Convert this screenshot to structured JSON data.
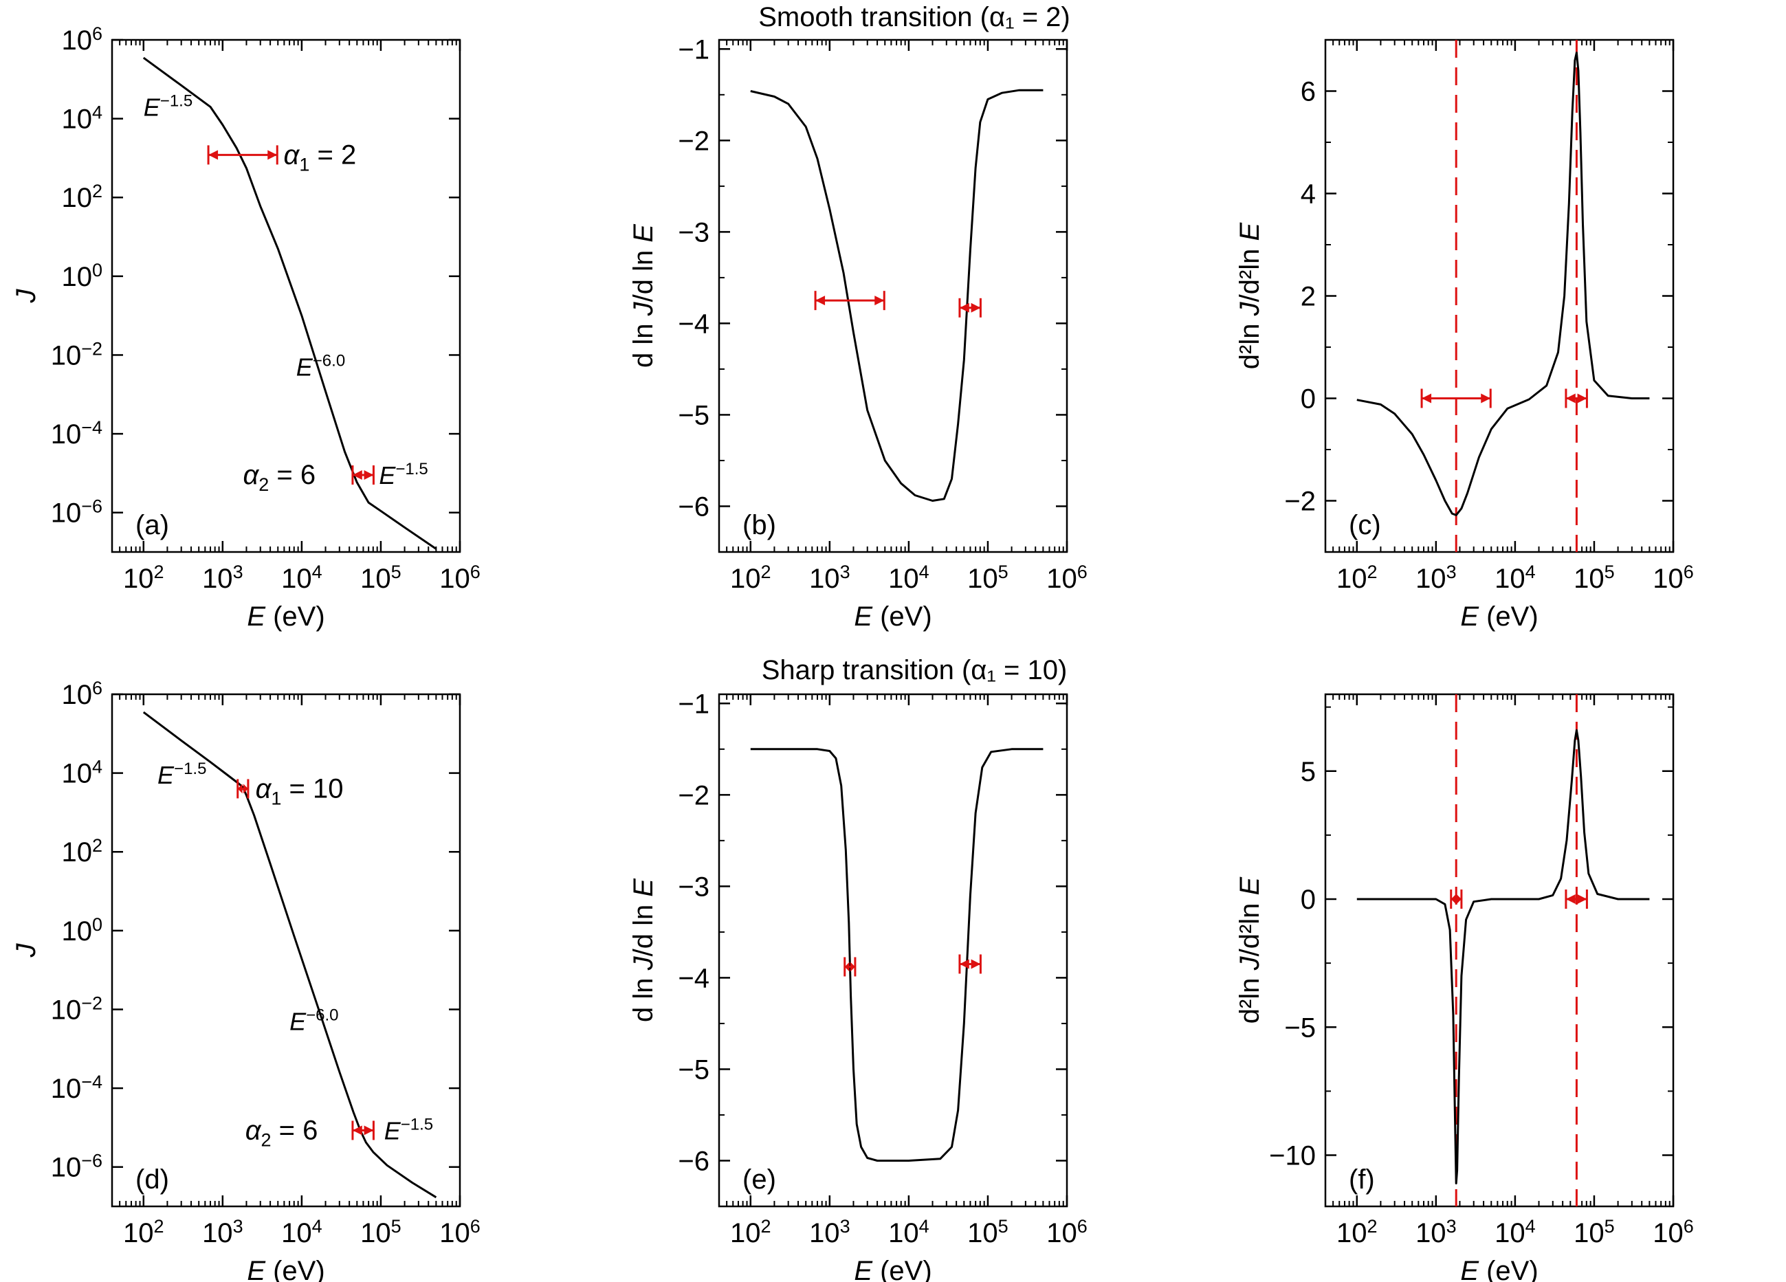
{
  "figure": {
    "row_titles": [
      "Smooth transition (α₁ = 2)",
      "Sharp transition (α₁ = 10)"
    ]
  },
  "chart_data": [
    {
      "id": "a",
      "type": "line",
      "panel_label": "(a)",
      "row": 0,
      "col": 0,
      "x_scale": "log",
      "y_scale": "log",
      "xlim": [
        40,
        1000000
      ],
      "ylim": [
        1e-07,
        1000000
      ],
      "xlabel": "E (eV)",
      "ylabel": "J",
      "xticks": [
        100,
        1000,
        10000,
        100000,
        1000000
      ],
      "xtick_labels": [
        "10^2",
        "10^3",
        "10^4",
        "10^5",
        "10^6"
      ],
      "yticks": [
        1e-06,
        0.0001,
        0.01,
        1,
        100,
        10000,
        1000000
      ],
      "ytick_labels": [
        "10^-6",
        "10^-4",
        "10^-2",
        "10^0",
        "10^2",
        "10^4",
        "10^6"
      ],
      "series": [
        {
          "x": [
            100,
            300,
            700,
            1000,
            1500,
            2000,
            3000,
            5000,
            10000,
            20000,
            35000,
            50000,
            70000,
            100000,
            200000,
            500000
          ],
          "y": [
            350000,
            70000,
            20000,
            7000,
            1800,
            550,
            60,
            5,
            0.1,
            0.0012,
            3.5e-05,
            5.8e-06,
            1.8e-06,
            1.1e-06,
            4.2e-07,
            1.2e-07
          ]
        }
      ],
      "brackets": [
        {
          "x1": 660,
          "x2": 4900,
          "y": 1200
        },
        {
          "x1": 44000,
          "x2": 81000,
          "y": 9e-06
        }
      ],
      "vlines": [],
      "annotations": [
        {
          "text": "E",
          "exp": "−1.5",
          "x": 100,
          "y": 20000,
          "size": "small"
        },
        {
          "text": "α",
          "sub": "1",
          "rest": " = 2",
          "x": 5900,
          "y": 1200,
          "size": "big"
        },
        {
          "text": "E",
          "exp": "−6.0",
          "x": 8500,
          "y": 0.005,
          "size": "small"
        },
        {
          "text": "α",
          "sub": "2",
          "rest": " = 6",
          "x": 15000,
          "y": 9e-06,
          "size": "big",
          "anchor": "end"
        },
        {
          "text": "E",
          "exp": "−1.5",
          "x": 95000,
          "y": 9e-06,
          "size": "small"
        }
      ]
    },
    {
      "id": "b",
      "type": "line",
      "panel_label": "(b)",
      "row": 0,
      "col": 1,
      "x_scale": "log",
      "y_scale": "linear",
      "xlim": [
        40,
        1000000
      ],
      "ylim": [
        -6.5,
        -0.9
      ],
      "xlabel": "E (eV)",
      "ylabel": "d ln J/d ln E",
      "xticks": [
        100,
        1000,
        10000,
        100000,
        1000000
      ],
      "xtick_labels": [
        "10^2",
        "10^3",
        "10^4",
        "10^5",
        "10^6"
      ],
      "yticks": [
        -6,
        -5,
        -4,
        -3,
        -2,
        -1
      ],
      "ytick_labels": [
        "−6",
        "−5",
        "−4",
        "−3",
        "−2",
        "−1"
      ],
      "series": [
        {
          "x": [
            100,
            200,
            300,
            500,
            700,
            1000,
            1500,
            2000,
            3000,
            5000,
            8000,
            12000,
            20000,
            28000,
            35000,
            42000,
            50000,
            60000,
            70000,
            80000,
            100000,
            150000,
            250000,
            500000
          ],
          "y": [
            -1.46,
            -1.52,
            -1.6,
            -1.85,
            -2.2,
            -2.75,
            -3.45,
            -4.1,
            -4.95,
            -5.5,
            -5.75,
            -5.88,
            -5.94,
            -5.92,
            -5.7,
            -5.1,
            -4.4,
            -3.2,
            -2.3,
            -1.8,
            -1.55,
            -1.48,
            -1.45,
            -1.45
          ]
        }
      ],
      "brackets": [
        {
          "x1": 660,
          "x2": 4900,
          "y": -3.75
        },
        {
          "x1": 44000,
          "x2": 81000,
          "y": -3.83
        }
      ],
      "vlines": [],
      "annotations": []
    },
    {
      "id": "c",
      "type": "line",
      "panel_label": "(c)",
      "row": 0,
      "col": 2,
      "x_scale": "log",
      "y_scale": "linear",
      "xlim": [
        40,
        1000000
      ],
      "ylim": [
        -3,
        7
      ],
      "xlabel": "E (eV)",
      "ylabel": "d²ln J/d²ln E",
      "xticks": [
        100,
        1000,
        10000,
        100000,
        1000000
      ],
      "xtick_labels": [
        "10^2",
        "10^3",
        "10^4",
        "10^5",
        "10^6"
      ],
      "yticks": [
        -2,
        0,
        2,
        4,
        6
      ],
      "ytick_labels": [
        "−2",
        "0",
        "2",
        "4",
        "6"
      ],
      "series": [
        {
          "x": [
            100,
            200,
            300,
            500,
            700,
            1000,
            1300,
            1600,
            1800,
            2100,
            2500,
            3500,
            5000,
            8000,
            15000,
            25000,
            35000,
            42000,
            48000,
            53000,
            57000,
            60000,
            63000,
            67000,
            72000,
            80000,
            100000,
            150000,
            300000,
            500000
          ],
          "y": [
            -0.03,
            -0.12,
            -0.3,
            -0.7,
            -1.1,
            -1.6,
            -2.0,
            -2.25,
            -2.28,
            -2.15,
            -1.85,
            -1.15,
            -0.6,
            -0.2,
            -0.02,
            0.25,
            0.9,
            2.0,
            3.8,
            5.6,
            6.6,
            6.75,
            6.4,
            5.2,
            3.4,
            1.5,
            0.35,
            0.05,
            0.0,
            0.0
          ]
        }
      ],
      "brackets": [
        {
          "x1": 660,
          "x2": 4900,
          "y": 0
        },
        {
          "x1": 44000,
          "x2": 81000,
          "y": 0
        }
      ],
      "vlines": [
        1800,
        60000
      ],
      "annotations": []
    },
    {
      "id": "d",
      "type": "line",
      "panel_label": "(d)",
      "row": 1,
      "col": 0,
      "x_scale": "log",
      "y_scale": "log",
      "xlim": [
        40,
        1000000
      ],
      "ylim": [
        1e-07,
        1000000
      ],
      "xlabel": "E (eV)",
      "ylabel": "J",
      "xticks": [
        100,
        1000,
        10000,
        100000,
        1000000
      ],
      "xtick_labels": [
        "10^2",
        "10^3",
        "10^4",
        "10^5",
        "10^6"
      ],
      "yticks": [
        1e-06,
        0.0001,
        0.01,
        1,
        100,
        10000,
        1000000
      ],
      "ytick_labels": [
        "10^-6",
        "10^-4",
        "10^-2",
        "10^0",
        "10^2",
        "10^4",
        "10^6"
      ],
      "series": [
        {
          "x": [
            100,
            300,
            700,
            1200,
            1600,
            1800,
            2000,
            2500,
            4000,
            8000,
            15000,
            30000,
            45000,
            55000,
            65000,
            80000,
            120000,
            250000,
            500000
          ],
          "y": [
            350000,
            67000,
            19000,
            8400,
            5400,
            4400,
            2700,
            850,
            50,
            0.74,
            0.017,
            0.00026,
            2.5e-05,
            8.5e-06,
            4.2e-06,
            2.4e-06,
            1.1e-06,
            4e-07,
            1.7e-07
          ]
        }
      ],
      "brackets": [
        {
          "x1": 1550,
          "x2": 2100,
          "y": 4000
        },
        {
          "x1": 44000,
          "x2": 81000,
          "y": 8.5e-06
        }
      ],
      "vlines": [],
      "annotations": [
        {
          "text": "E",
          "exp": "−1.5",
          "x": 150,
          "y": 9000,
          "size": "small"
        },
        {
          "text": "α",
          "sub": "1",
          "rest": " = 10",
          "x": 2600,
          "y": 4000,
          "size": "big"
        },
        {
          "text": "E",
          "exp": "−6.0",
          "x": 7000,
          "y": 0.005,
          "size": "small"
        },
        {
          "text": "α",
          "sub": "2",
          "rest": " = 6",
          "x": 16000,
          "y": 8.5e-06,
          "size": "big",
          "anchor": "end"
        },
        {
          "text": "E",
          "exp": "−1.5",
          "x": 110000,
          "y": 8.5e-06,
          "size": "small"
        }
      ]
    },
    {
      "id": "e",
      "type": "line",
      "panel_label": "(e)",
      "row": 1,
      "col": 1,
      "x_scale": "log",
      "y_scale": "linear",
      "xlim": [
        40,
        1000000
      ],
      "ylim": [
        -6.5,
        -0.9
      ],
      "xlabel": "E (eV)",
      "ylabel": "d ln J/d ln E",
      "xticks": [
        100,
        1000,
        10000,
        100000,
        1000000
      ],
      "xtick_labels": [
        "10^2",
        "10^3",
        "10^4",
        "10^5",
        "10^6"
      ],
      "yticks": [
        -6,
        -5,
        -4,
        -3,
        -2,
        -1
      ],
      "ytick_labels": [
        "−6",
        "−5",
        "−4",
        "−3",
        "−2",
        "−1"
      ],
      "series": [
        {
          "x": [
            100,
            700,
            1000,
            1200,
            1400,
            1600,
            1750,
            1850,
            2000,
            2200,
            2500,
            3000,
            4000,
            10000,
            25000,
            35000,
            42000,
            50000,
            60000,
            70000,
            85000,
            110000,
            200000,
            500000
          ],
          "y": [
            -1.5,
            -1.5,
            -1.52,
            -1.6,
            -1.9,
            -2.6,
            -3.4,
            -4.2,
            -5.0,
            -5.6,
            -5.85,
            -5.97,
            -6.0,
            -6.0,
            -5.98,
            -5.85,
            -5.45,
            -4.5,
            -3.1,
            -2.2,
            -1.7,
            -1.53,
            -1.5,
            -1.5
          ]
        }
      ],
      "brackets": [
        {
          "x1": 1550,
          "x2": 2100,
          "y": -3.88
        },
        {
          "x1": 44000,
          "x2": 81000,
          "y": -3.85
        }
      ],
      "vlines": [],
      "annotations": []
    },
    {
      "id": "f",
      "type": "line",
      "panel_label": "(f)",
      "row": 1,
      "col": 2,
      "x_scale": "log",
      "y_scale": "linear",
      "xlim": [
        40,
        1000000
      ],
      "ylim": [
        -12,
        8
      ],
      "xlabel": "E (eV)",
      "ylabel": "d²ln J/d²ln E",
      "xticks": [
        100,
        1000,
        10000,
        100000,
        1000000
      ],
      "xtick_labels": [
        "10^2",
        "10^3",
        "10^4",
        "10^5",
        "10^6"
      ],
      "yticks": [
        -10,
        -5,
        0,
        5
      ],
      "ytick_labels": [
        "−10",
        "−5",
        "0",
        "5"
      ],
      "series": [
        {
          "x": [
            100,
            1000,
            1300,
            1500,
            1650,
            1750,
            1800,
            1850,
            1950,
            2100,
            2400,
            3000,
            5000,
            20000,
            30000,
            38000,
            45000,
            52000,
            57000,
            60000,
            63000,
            68000,
            75000,
            85000,
            110000,
            200000,
            500000
          ],
          "y": [
            0,
            0,
            -0.2,
            -1.2,
            -4.5,
            -9.0,
            -11.1,
            -10.6,
            -7.0,
            -3.0,
            -0.8,
            -0.1,
            0,
            0,
            0.15,
            0.8,
            2.3,
            4.6,
            6.2,
            6.6,
            6.2,
            4.8,
            2.6,
            1.0,
            0.2,
            0,
            0
          ]
        }
      ],
      "brackets": [
        {
          "x1": 1550,
          "x2": 2100,
          "y": 0
        },
        {
          "x1": 44000,
          "x2": 81000,
          "y": 0
        }
      ],
      "vlines": [
        1800,
        60000
      ],
      "annotations": []
    }
  ]
}
